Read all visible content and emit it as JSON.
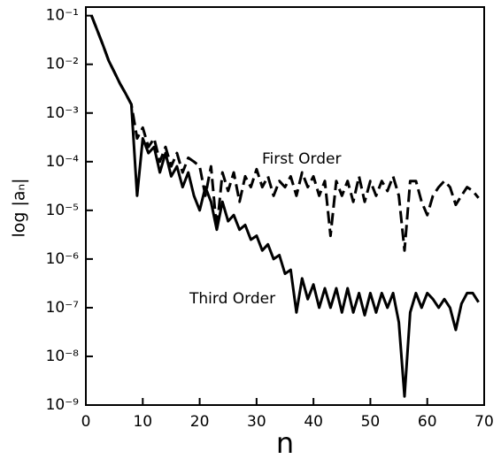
{
  "chart_data": {
    "type": "line",
    "xlabel": "n",
    "ylabel": "log |aₙ|",
    "log_y": true,
    "xlim": [
      0,
      70
    ],
    "xticks": [
      0,
      10,
      20,
      30,
      40,
      50,
      60,
      70
    ],
    "ylim": [
      1e-09,
      0.15
    ],
    "yticks": [
      {
        "value": 1e-09,
        "label": "10⁻⁹"
      },
      {
        "value": 1e-08,
        "label": "10⁻⁸"
      },
      {
        "value": 1e-07,
        "label": "10⁻⁷"
      },
      {
        "value": 1e-06,
        "label": "10⁻⁶"
      },
      {
        "value": 1e-05,
        "label": "10⁻⁵"
      },
      {
        "value": 0.0001,
        "label": "10⁻⁴"
      },
      {
        "value": 0.001,
        "label": "10⁻³"
      },
      {
        "value": 0.01,
        "label": "10⁻²"
      },
      {
        "value": 0.1,
        "label": "10⁻¹"
      }
    ],
    "x": [
      1,
      2,
      3,
      4,
      5,
      6,
      7,
      8,
      9,
      10,
      11,
      12,
      13,
      14,
      15,
      16,
      17,
      18,
      19,
      20,
      21,
      22,
      23,
      24,
      25,
      26,
      27,
      28,
      29,
      30,
      31,
      32,
      33,
      34,
      35,
      36,
      37,
      38,
      39,
      40,
      41,
      42,
      43,
      44,
      45,
      46,
      47,
      48,
      49,
      50,
      51,
      52,
      53,
      54,
      55,
      56,
      57,
      58,
      59,
      60,
      61,
      62,
      63,
      64,
      65,
      66,
      67,
      68,
      69
    ],
    "series": [
      {
        "name": "First Order",
        "color": "#000000",
        "dash": true,
        "values": [
          0.1,
          0.05,
          0.025,
          0.012,
          0.007,
          0.004,
          0.0025,
          0.0015,
          0.0003,
          0.0005,
          0.0002,
          0.0003,
          0.0001,
          0.0002,
          8e-05,
          0.00015,
          6e-05,
          0.00012,
          0.0001,
          8e-05,
          2e-05,
          8e-05,
          4e-06,
          6e-05,
          2.5e-05,
          6e-05,
          1.5e-05,
          5e-05,
          3e-05,
          7e-05,
          3e-05,
          5e-05,
          2e-05,
          4e-05,
          3e-05,
          5e-05,
          2e-05,
          6e-05,
          3e-05,
          5e-05,
          2e-05,
          4e-05,
          3e-06,
          4e-05,
          2e-05,
          4e-05,
          1.5e-05,
          5e-05,
          1.5e-05,
          4e-05,
          2e-05,
          4e-05,
          2.5e-05,
          5e-05,
          2e-05,
          1.5e-06,
          4e-05,
          4e-05,
          1.5e-05,
          8e-06,
          2e-05,
          3e-05,
          4e-05,
          3e-05,
          1.3e-05,
          2e-05,
          3e-05,
          2.5e-05,
          1.8e-05
        ]
      },
      {
        "name": "Third Order",
        "color": "#000000",
        "dash": false,
        "values": [
          0.1,
          0.05,
          0.025,
          0.012,
          0.007,
          0.004,
          0.0025,
          0.0015,
          2e-05,
          0.0003,
          0.00015,
          0.0002,
          6e-05,
          0.00015,
          5e-05,
          8e-05,
          3e-05,
          6e-05,
          2e-05,
          1e-05,
          3e-05,
          1.5e-05,
          4e-06,
          1.5e-05,
          6e-06,
          8e-06,
          4e-06,
          5e-06,
          2.5e-06,
          3e-06,
          1.5e-06,
          2e-06,
          1e-06,
          1.2e-06,
          5e-07,
          6e-07,
          8e-08,
          4e-07,
          1.5e-07,
          3e-07,
          1e-07,
          2.5e-07,
          1e-07,
          2.5e-07,
          8e-08,
          2.5e-07,
          8e-08,
          2e-07,
          7e-08,
          2e-07,
          8e-08,
          2e-07,
          1e-07,
          2e-07,
          5e-08,
          1.5e-09,
          8e-08,
          2e-07,
          1e-07,
          2e-07,
          1.5e-07,
          1e-07,
          1.5e-07,
          1e-07,
          3.5e-08,
          1.2e-07,
          2e-07,
          2e-07,
          1.3e-07
        ]
      }
    ]
  }
}
